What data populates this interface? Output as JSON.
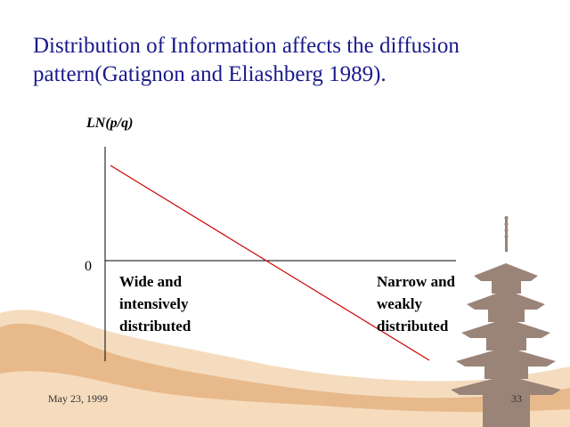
{
  "slide": {
    "title_line1": "Distribution of Information affects the diffusion",
    "title_line2": "pattern(Gatignon and Eliashberg 1989).",
    "date": "May 23, 1999",
    "page_number": "33"
  },
  "chart": {
    "y_axis_label": "LN(p/q)",
    "zero_label": "0",
    "left_label": [
      "Wide and",
      "intensively",
      "distributed"
    ],
    "right_label": [
      "Narrow and",
      "weakly",
      "distributed"
    ],
    "line_color": "#cc0000",
    "axis_color": "#000000"
  },
  "colors": {
    "title": "#1a1a8c",
    "landscape": "#e8b98a",
    "pagoda": "#9a8478"
  }
}
